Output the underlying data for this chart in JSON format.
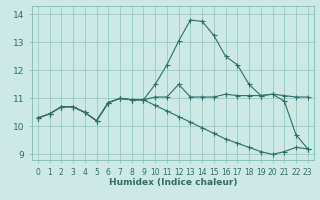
{
  "title": "",
  "xlabel": "Humidex (Indice chaleur)",
  "ylabel": "",
  "bg_color": "#cce9e5",
  "grid_color": "#7bbdb8",
  "line_color": "#2d6e6a",
  "xlim": [
    -0.5,
    23.5
  ],
  "ylim": [
    8.8,
    14.3
  ],
  "xticks": [
    0,
    1,
    2,
    3,
    4,
    5,
    6,
    7,
    8,
    9,
    10,
    11,
    12,
    13,
    14,
    15,
    16,
    17,
    18,
    19,
    20,
    21,
    22,
    23
  ],
  "yticks": [
    9,
    10,
    11,
    12,
    13,
    14
  ],
  "line1_x": [
    0,
    1,
    2,
    3,
    4,
    5,
    6,
    7,
    8,
    9,
    10,
    11,
    12,
    13,
    14,
    15,
    16,
    17,
    18,
    19,
    20,
    21,
    22,
    23
  ],
  "line1_y": [
    10.3,
    10.45,
    10.7,
    10.7,
    10.5,
    10.2,
    10.85,
    11.0,
    10.95,
    10.95,
    11.05,
    11.05,
    11.5,
    11.05,
    11.05,
    11.05,
    11.15,
    11.1,
    11.1,
    11.1,
    11.15,
    11.1,
    11.05,
    11.05
  ],
  "line2_x": [
    0,
    1,
    2,
    3,
    4,
    5,
    6,
    7,
    8,
    9,
    10,
    11,
    12,
    13,
    14,
    15,
    16,
    17,
    18,
    19,
    20,
    21,
    22,
    23
  ],
  "line2_y": [
    10.3,
    10.45,
    10.7,
    10.7,
    10.5,
    10.2,
    10.85,
    11.0,
    10.95,
    10.95,
    11.5,
    12.2,
    13.05,
    13.8,
    13.75,
    13.25,
    12.5,
    12.2,
    11.5,
    11.1,
    11.15,
    10.9,
    9.7,
    9.2
  ],
  "line3_x": [
    0,
    1,
    2,
    3,
    4,
    5,
    6,
    7,
    8,
    9,
    10,
    11,
    12,
    13,
    14,
    15,
    16,
    17,
    18,
    19,
    20,
    21,
    22,
    23
  ],
  "line3_y": [
    10.3,
    10.45,
    10.7,
    10.7,
    10.5,
    10.2,
    10.85,
    11.0,
    10.95,
    10.95,
    10.75,
    10.55,
    10.35,
    10.15,
    9.95,
    9.75,
    9.55,
    9.4,
    9.25,
    9.1,
    9.0,
    9.1,
    9.25,
    9.2
  ]
}
